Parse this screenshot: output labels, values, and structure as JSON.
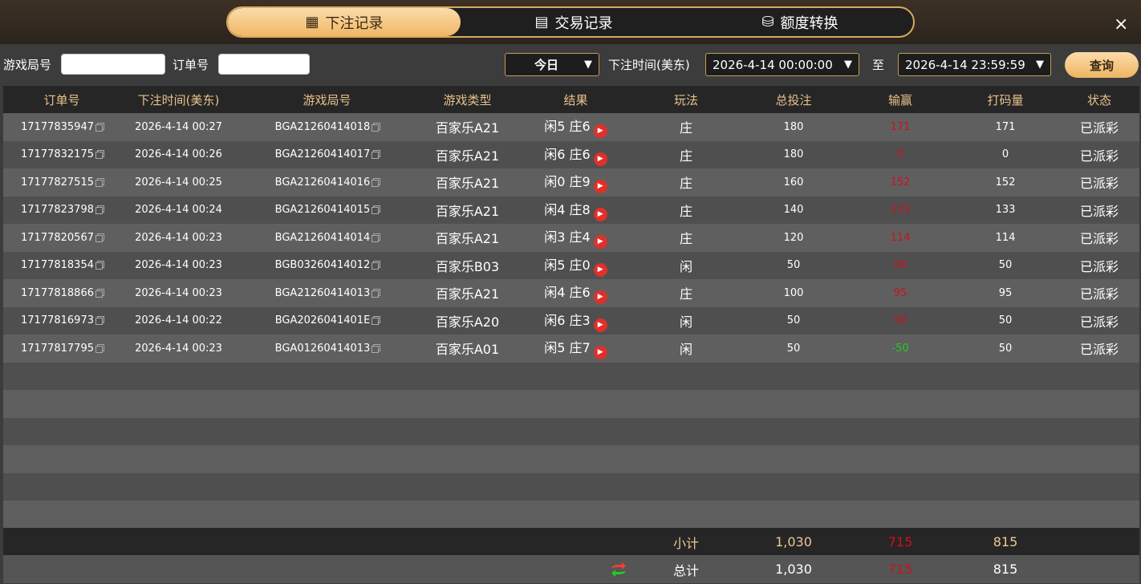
{
  "tabs": [
    {
      "label": "下注记录",
      "icon": "calendar-icon",
      "active": true
    },
    {
      "label": "交易记录",
      "icon": "clipboard-icon"
    },
    {
      "label": "额度转换",
      "icon": "coins-icon"
    }
  ],
  "close_icon": "×",
  "filter": {
    "round_label": "游戏局号",
    "round_value": "",
    "order_label": "订单号",
    "order_value": "",
    "range": "今日",
    "time_label": "下注时间(美东)",
    "start": "2026-4-14 00:00:00",
    "to": "至",
    "end": "2026-4-14 23:59:59",
    "query": "查询"
  },
  "columns": [
    "订单号",
    "下注时间(美东)",
    "游戏局号",
    "游戏类型",
    "结果",
    "玩法",
    "总投注",
    "输赢",
    "打码量",
    "状态"
  ],
  "rows": [
    [
      "17177835947",
      "2026-4-14 00:27",
      "BGA21260414018",
      "百家乐A21",
      "闲5 庄6",
      "庄",
      "180",
      "171",
      "171",
      "已派彩"
    ],
    [
      "17177832175",
      "2026-4-14 00:26",
      "BGA21260414017",
      "百家乐A21",
      "闲6 庄6",
      "庄",
      "180",
      "0",
      "0",
      "已派彩"
    ],
    [
      "17177827515",
      "2026-4-14 00:25",
      "BGA21260414016",
      "百家乐A21",
      "闲0 庄9",
      "庄",
      "160",
      "152",
      "152",
      "已派彩"
    ],
    [
      "17177823798",
      "2026-4-14 00:24",
      "BGA21260414015",
      "百家乐A21",
      "闲4 庄8",
      "庄",
      "140",
      "133",
      "133",
      "已派彩"
    ],
    [
      "17177820567",
      "2026-4-14 00:23",
      "BGA21260414014",
      "百家乐A21",
      "闲3 庄4",
      "庄",
      "120",
      "114",
      "114",
      "已派彩"
    ],
    [
      "17177818354",
      "2026-4-14 00:23",
      "BGB03260414012",
      "百家乐B03",
      "闲5 庄0",
      "闲",
      "50",
      "50",
      "50",
      "已派彩"
    ],
    [
      "17177818866",
      "2026-4-14 00:23",
      "BGA21260414013",
      "百家乐A21",
      "闲4 庄6",
      "庄",
      "100",
      "95",
      "95",
      "已派彩"
    ],
    [
      "17177816973",
      "2026-4-14 00:22",
      "BGA2026041401E",
      "百家乐A20",
      "闲6 庄3",
      "闲",
      "50",
      "50",
      "50",
      "已派彩"
    ],
    [
      "17177817795",
      "2026-4-14 00:23",
      "BGA01260414013",
      "百家乐A01",
      "闲5 庄7",
      "闲",
      "50",
      "-50",
      "50",
      "已派彩"
    ]
  ],
  "subtotal": {
    "label": "小计",
    "bet": "1,030",
    "winloss": "715",
    "turnover": "815"
  },
  "total": {
    "label": "总计",
    "bet": "1,030",
    "winloss": "715",
    "turnover": "815"
  },
  "colors": {
    "accent": "#e8c28a",
    "win": "#d0101c",
    "loss": "#22cc22"
  }
}
